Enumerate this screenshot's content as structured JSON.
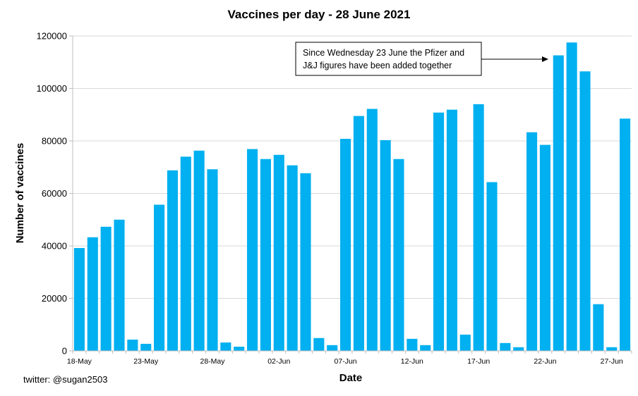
{
  "chart_data": {
    "type": "bar",
    "title": "Vaccines per day - 28 June 2021",
    "xlabel": "Date",
    "ylabel": "Number of vaccines",
    "ylim": [
      0,
      120000
    ],
    "yticks": [
      "0",
      "20000",
      "40000",
      "60000",
      "80000",
      "100000",
      "120000"
    ],
    "xticks": [
      "18-May",
      "23-May",
      "28-May",
      "02-Jun",
      "07-Jun",
      "12-Jun",
      "17-Jun",
      "22-Jun",
      "27-Jun"
    ],
    "bar_color": "#00b0f0",
    "grid": true,
    "categories": [
      "18-May",
      "19-May",
      "20-May",
      "21-May",
      "22-May",
      "23-May",
      "24-May",
      "25-May",
      "26-May",
      "27-May",
      "28-May",
      "29-May",
      "30-May",
      "31-May",
      "01-Jun",
      "02-Jun",
      "03-Jun",
      "04-Jun",
      "05-Jun",
      "06-Jun",
      "07-Jun",
      "08-Jun",
      "09-Jun",
      "10-Jun",
      "11-Jun",
      "12-Jun",
      "13-Jun",
      "14-Jun",
      "15-Jun",
      "16-Jun",
      "17-Jun",
      "18-Jun",
      "19-Jun",
      "20-Jun",
      "21-Jun",
      "22-Jun",
      "23-Jun",
      "24-Jun",
      "25-Jun",
      "26-Jun",
      "27-Jun",
      "28-Jun"
    ],
    "values": [
      39200,
      43300,
      47300,
      50000,
      4300,
      2700,
      55700,
      68800,
      74000,
      76300,
      69200,
      3200,
      1600,
      76900,
      73100,
      74700,
      70700,
      67700,
      4900,
      2200,
      80800,
      89500,
      92200,
      80300,
      73100,
      4600,
      2200,
      90800,
      91900,
      6200,
      94000,
      64300,
      3000,
      1400,
      83300,
      78500,
      112600,
      117500,
      106500,
      17800,
      1400,
      88500
    ],
    "annotation": {
      "lines": [
        "Since Wednesday 23 June the Pfizer and",
        "J&J figures have been added together"
      ],
      "points_to": "23-Jun"
    },
    "credit": "twitter: @sugan2503"
  }
}
